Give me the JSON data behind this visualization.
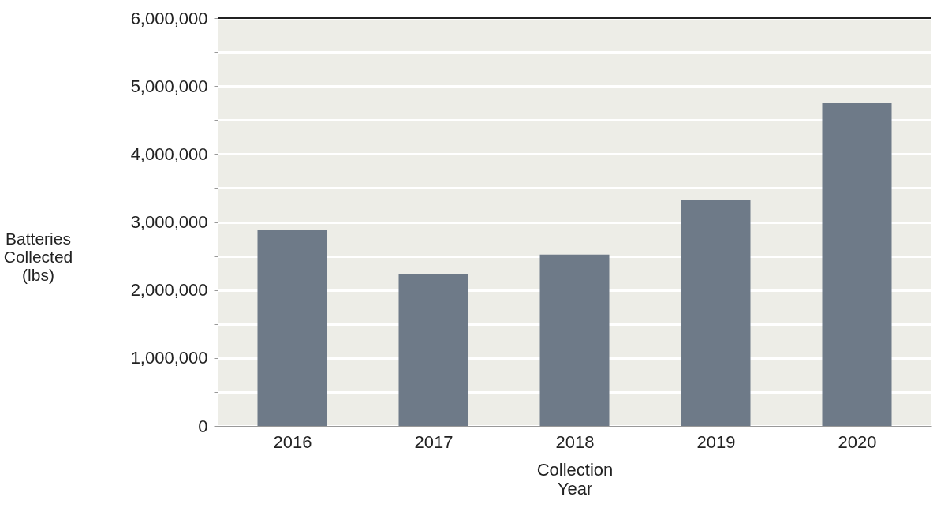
{
  "chart_data": {
    "type": "bar",
    "xlabel": "Collection Year",
    "ylabel": "Batteries Collected (lbs)",
    "categories": [
      "2016",
      "2017",
      "2018",
      "2019",
      "2020"
    ],
    "values": [
      2880000,
      2240000,
      2520000,
      3320000,
      4750000
    ],
    "color": "#6e7a88",
    "ylim": [
      0,
      6000000
    ],
    "yticks": [
      0,
      {
        "value": 500000,
        "label": null
      },
      {
        "value": 1000000,
        "label": "1,000,000"
      },
      {
        "value": 1500000,
        "label": null
      },
      {
        "value": 2000000,
        "label": "2,000,000"
      },
      {
        "value": 2500000,
        "label": null
      },
      {
        "value": 3000000,
        "label": "3,000,000"
      },
      {
        "value": 3500000,
        "label": null
      },
      {
        "value": 4000000,
        "label": "4,000,000"
      },
      {
        "value": 4500000,
        "label": null
      },
      {
        "value": 5000000,
        "label": "5,000,000"
      },
      {
        "value": 5500000,
        "label": null
      },
      {
        "value": 6000000,
        "label": "6,000,000"
      }
    ],
    "grid": "y"
  }
}
